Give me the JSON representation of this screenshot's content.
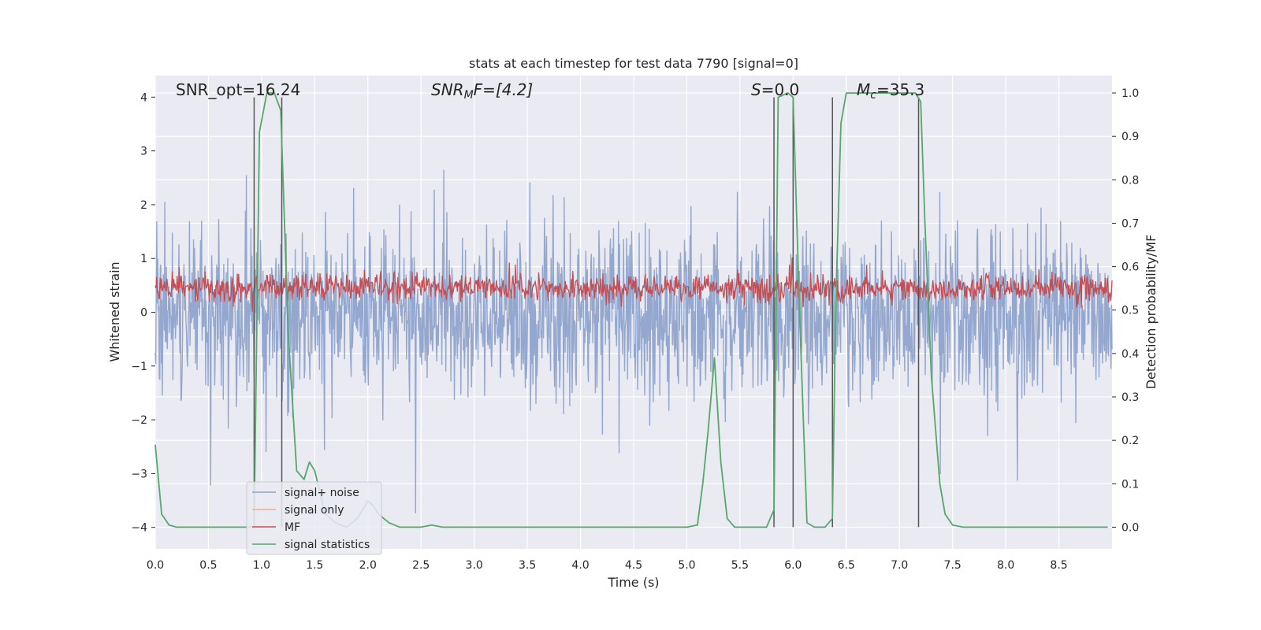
{
  "chart_data": {
    "type": "line",
    "title": "stats at each timestep for test data 7790 [signal=0]",
    "xlabel": "Time (s)",
    "ylabel_left": "Whitened strain",
    "ylabel_right": "Detection probability/MF",
    "xlim": [
      0.0,
      9.0
    ],
    "ylim_left": [
      -4.4,
      4.4
    ],
    "ylim_right": [
      -0.05,
      1.04
    ],
    "xticks": [
      "0.0",
      "0.5",
      "1.0",
      "1.5",
      "2.0",
      "2.5",
      "3.0",
      "3.5",
      "4.0",
      "4.5",
      "5.0",
      "5.5",
      "6.0",
      "6.5",
      "7.0",
      "7.5",
      "8.0",
      "8.5"
    ],
    "yticks_left": [
      "−4",
      "−3",
      "−2",
      "−1",
      "0",
      "1",
      "2",
      "3",
      "4"
    ],
    "yticks_right": [
      "0.0",
      "0.1",
      "0.2",
      "0.3",
      "0.4",
      "0.5",
      "0.6",
      "0.7",
      "0.8",
      "0.9",
      "1.0"
    ],
    "grid": true,
    "legend_position": "lower-left",
    "annotations": {
      "snr_opt": "SNR_opt=16.24",
      "snr_mf_base": "SNR",
      "snr_mf_sub": "M",
      "snr_mf_rest": "F=[4.2]",
      "s_base": "S",
      "s_rest": "=0.0",
      "mc_base": "M",
      "mc_sub": "c",
      "mc_rest": "=35.3"
    },
    "series": [
      {
        "name": "signal+ noise",
        "color": "#8fa3cc",
        "axis": "left",
        "amplitude_range": [
          -4.0,
          3.9
        ],
        "typical_envelope": [
          -1.6,
          1.6
        ]
      },
      {
        "name": "signal only",
        "color": "#f0ad8c",
        "axis": "left",
        "values": []
      },
      {
        "name": "MF",
        "color": "#c44e52",
        "axis": "right",
        "center": 0.55,
        "typical_range": [
          0.5,
          0.61
        ]
      },
      {
        "name": "signal statistics",
        "color": "#55a868",
        "axis": "right",
        "x": [
          0.0,
          0.06,
          0.13,
          0.2,
          0.3,
          0.5,
          0.8,
          0.93,
          0.98,
          1.05,
          1.12,
          1.18,
          1.25,
          1.33,
          1.4,
          1.45,
          1.5,
          1.6,
          1.7,
          1.8,
          1.9,
          1.95,
          2.0,
          2.05,
          2.1,
          2.2,
          2.3,
          2.5,
          2.6,
          2.7,
          3.0,
          4.0,
          5.0,
          5.1,
          5.15,
          5.2,
          5.26,
          5.32,
          5.38,
          5.45,
          5.5,
          5.6,
          5.75,
          5.82,
          5.86,
          5.95,
          6.0,
          6.06,
          6.13,
          6.2,
          6.3,
          6.37,
          6.4,
          6.45,
          6.5,
          6.6,
          6.8,
          7.0,
          7.15,
          7.2,
          7.24,
          7.3,
          7.38,
          7.43,
          7.5,
          7.6,
          8.0,
          8.5,
          8.96
        ],
        "y": [
          0.19,
          0.03,
          0.005,
          0.0,
          0.0,
          0.0,
          0.0,
          0.0,
          0.91,
          1.0,
          1.0,
          0.96,
          0.45,
          0.13,
          0.11,
          0.15,
          0.13,
          0.03,
          0.01,
          0.0,
          0.02,
          0.04,
          0.06,
          0.05,
          0.03,
          0.01,
          0.0,
          0.0,
          0.005,
          0.0,
          0.0,
          0.0,
          0.0,
          0.005,
          0.1,
          0.22,
          0.39,
          0.15,
          0.02,
          0.0,
          0.0,
          0.0,
          0.0,
          0.04,
          0.99,
          1.0,
          0.99,
          0.5,
          0.01,
          0.0,
          0.0,
          0.02,
          0.5,
          0.93,
          1.0,
          1.0,
          1.0,
          1.0,
          1.0,
          0.98,
          0.7,
          0.35,
          0.1,
          0.03,
          0.005,
          0.0,
          0.0,
          0.0,
          0.0
        ]
      }
    ],
    "vertical_lines": [
      {
        "x": 0.93,
        "ymin": 0.0,
        "ymax": 0.99
      },
      {
        "x": 1.19,
        "ymin": 0.0,
        "ymax": 0.99
      },
      {
        "x": 5.82,
        "ymin": 0.0,
        "ymax": 0.99
      },
      {
        "x": 6.0,
        "ymin": 0.0,
        "ymax": 0.99
      },
      {
        "x": 6.37,
        "ymin": 0.0,
        "ymax": 0.99
      },
      {
        "x": 7.18,
        "ymin": 0.0,
        "ymax": 0.99
      }
    ]
  }
}
